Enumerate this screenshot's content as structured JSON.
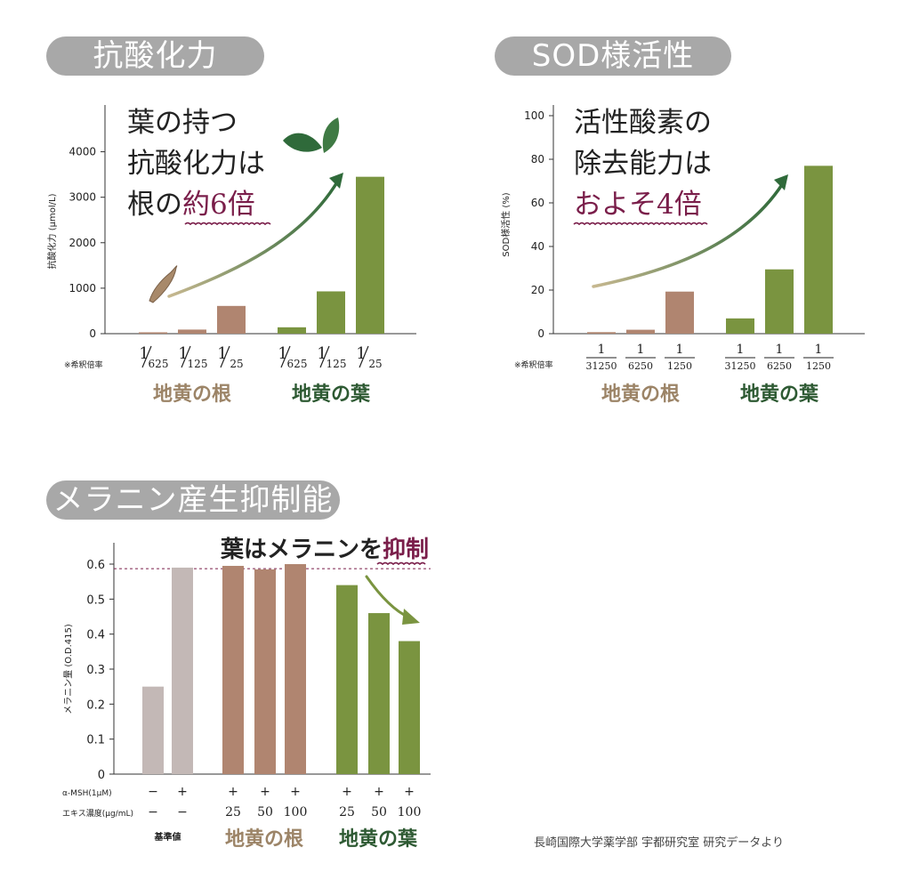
{
  "colors": {
    "root": "#b08570",
    "leaf": "#7a9440",
    "grey_base": "#c3b8b6",
    "pill": "#a8a8a8",
    "accent": "#7a1e4a",
    "root_text": "#9c8467",
    "leaf_text": "#2e5a33"
  },
  "icons": [
    "root-icon",
    "leaves-icon",
    "growth-arrow-icon",
    "down-arrow-icon"
  ],
  "source_note": "長崎国際大学薬学部 宇都研究室 研究データより",
  "chart_data": [
    {
      "type": "bar",
      "title": "抗酸化力",
      "ylabel": "抗酸化力 (μmol/L)",
      "yticks": [
        "0",
        "1000",
        "2000",
        "3000",
        "4000"
      ],
      "ylim": [
        0,
        4500
      ],
      "callout": {
        "line1": "葉の持つ",
        "line2": "抗酸化力は",
        "line3_pre": "根の",
        "line3_emph": "約6倍"
      },
      "dilution_label": "※希釈倍率",
      "groups": [
        {
          "name": "地黄の根",
          "color_key": "root",
          "categories": [
            {
              "num": "1",
              "den": "625"
            },
            {
              "num": "1",
              "den": "125"
            },
            {
              "num": "1",
              "den": "25"
            }
          ],
          "values": [
            30,
            90,
            610
          ]
        },
        {
          "name": "地黄の葉",
          "color_key": "leaf",
          "categories": [
            {
              "num": "1",
              "den": "625"
            },
            {
              "num": "1",
              "den": "125"
            },
            {
              "num": "1",
              "den": "25"
            }
          ],
          "values": [
            140,
            930,
            3450
          ]
        }
      ]
    },
    {
      "type": "bar",
      "title": "SOD様活性",
      "ylabel": "SOD様活性 (%)",
      "yticks": [
        "0",
        "20",
        "40",
        "60",
        "80",
        "100"
      ],
      "ylim": [
        0,
        100
      ],
      "callout": {
        "line1": "活性酸素の",
        "line2": "除去能力は",
        "line3_pre": "",
        "line3_emph": "およそ4倍"
      },
      "dilution_label": "※希釈倍率",
      "groups": [
        {
          "name": "地黄の根",
          "color_key": "root",
          "categories": [
            {
              "num": "1",
              "den": "31250"
            },
            {
              "num": "1",
              "den": "6250"
            },
            {
              "num": "1",
              "den": "1250"
            }
          ],
          "values": [
            0.7,
            1.8,
            19.3
          ]
        },
        {
          "name": "地黄の葉",
          "color_key": "leaf",
          "categories": [
            {
              "num": "1",
              "den": "31250"
            },
            {
              "num": "1",
              "den": "6250"
            },
            {
              "num": "1",
              "den": "1250"
            }
          ],
          "values": [
            7,
            29.5,
            77
          ]
        }
      ]
    },
    {
      "type": "bar",
      "title": "メラニン産生抑制能",
      "ylabel": "メラニン量 (O.D.415)",
      "yticks": [
        "0",
        "0.1",
        "0.2",
        "0.3",
        "0.4",
        "0.5",
        "0.6"
      ],
      "ylim": [
        0,
        0.6
      ],
      "reference_line": 0.587,
      "callout": {
        "pre": "葉はメラニンを",
        "emph": "抑制"
      },
      "row_labels": {
        "msh": "α-MSH(1μM)",
        "conc": "エキス濃度(μg/mL)"
      },
      "groups": [
        {
          "name": "基準値",
          "color_key": "grey_base",
          "msh": [
            "−",
            "+"
          ],
          "conc": [
            "−",
            "−"
          ],
          "values": [
            0.25,
            0.59
          ]
        },
        {
          "name": "地黄の根",
          "color_key": "root",
          "msh": [
            "+",
            "+",
            "+"
          ],
          "conc": [
            "25",
            "50",
            "100"
          ],
          "values": [
            0.595,
            0.585,
            0.6
          ]
        },
        {
          "name": "地黄の葉",
          "color_key": "leaf",
          "msh": [
            "+",
            "+",
            "+"
          ],
          "conc": [
            "25",
            "50",
            "100"
          ],
          "values": [
            0.54,
            0.46,
            0.38
          ]
        }
      ]
    }
  ]
}
